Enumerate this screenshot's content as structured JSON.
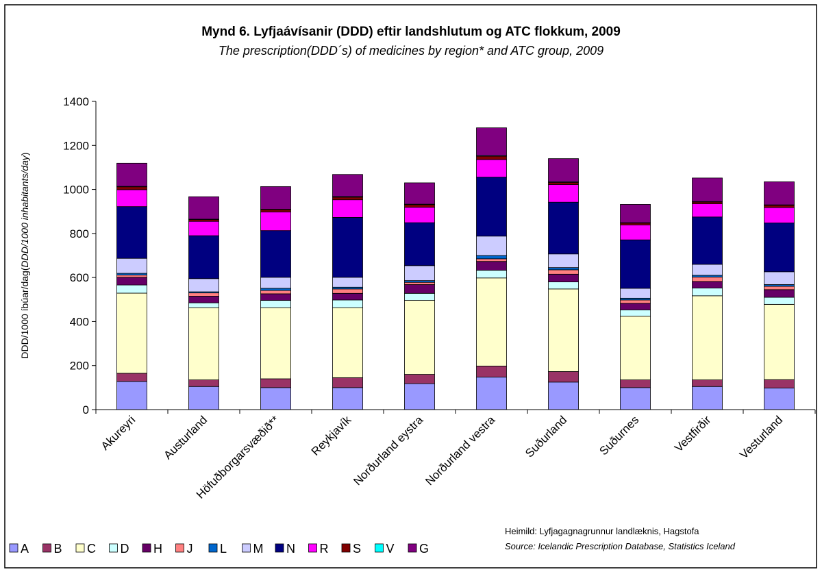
{
  "chart_data": {
    "type": "stacked_bar",
    "title": "Mynd 6.  Lyfjaávísanir (DDD) eftir landshlutum og ATC flokkum, 2009",
    "subtitle": "The prescription(DDD´s) of medicines by region* and ATC group, 2009",
    "y_label": [
      "DDD/1000 íbúar/dag(",
      "DDD/1000 inhabitants/day",
      ")"
    ],
    "source": [
      "Heimild: Lyfjagagnagrunnur landlæknis, Hagstofa",
      "Source: Icelandic Prescription Database, Statistics Iceland"
    ],
    "categories": [
      "Akureyri",
      "Austurland",
      "Höfuðborgarsvæðið**",
      "Reykjavík",
      "Norðurland eystra",
      "Norðurland vestra",
      "Suðurland",
      "Suðurnes",
      "Vestfirðir",
      "Vesturland"
    ],
    "ylim": [
      0,
      1400
    ],
    "yticks": [
      0,
      200,
      400,
      600,
      800,
      1000,
      1200,
      1400
    ],
    "grid": false,
    "legend": "bottom",
    "series": [
      {
        "name": "A",
        "color": "#9999ff",
        "values": [
          128,
          105,
          100,
          100,
          118,
          148,
          125,
          100,
          105,
          98
        ]
      },
      {
        "name": "B",
        "color": "#993366",
        "values": [
          37,
          30,
          40,
          45,
          42,
          50,
          48,
          35,
          30,
          38
        ]
      },
      {
        "name": "C",
        "color": "#ffffcc",
        "values": [
          364,
          328,
          323,
          318,
          336,
          400,
          375,
          290,
          382,
          342
        ]
      },
      {
        "name": "D",
        "color": "#ccffff",
        "values": [
          37,
          22,
          33,
          35,
          32,
          35,
          32,
          28,
          35,
          32
        ]
      },
      {
        "name": "H",
        "color": "#660066",
        "values": [
          35,
          30,
          30,
          30,
          40,
          40,
          35,
          30,
          30,
          35
        ]
      },
      {
        "name": "J",
        "color": "#ff8080",
        "values": [
          10,
          15,
          15,
          20,
          10,
          12,
          20,
          15,
          20,
          15
        ]
      },
      {
        "name": "L",
        "color": "#0066cc",
        "values": [
          8,
          5,
          10,
          8,
          8,
          15,
          10,
          8,
          8,
          8
        ]
      },
      {
        "name": "M",
        "color": "#ccccff",
        "values": [
          68,
          60,
          50,
          45,
          68,
          88,
          62,
          45,
          50,
          58
        ]
      },
      {
        "name": "N",
        "color": "#000080",
        "values": [
          235,
          195,
          212,
          272,
          195,
          268,
          235,
          220,
          215,
          222
        ]
      },
      {
        "name": "R",
        "color": "#ff00ff",
        "values": [
          77,
          65,
          85,
          80,
          70,
          80,
          80,
          68,
          60,
          70
        ]
      },
      {
        "name": "S",
        "color": "#800000",
        "values": [
          13,
          8,
          10,
          12,
          12,
          15,
          10,
          8,
          8,
          10
        ]
      },
      {
        "name": "V",
        "color": "#00ffff",
        "values": [
          2,
          2,
          2,
          3,
          2,
          3,
          3,
          2,
          2,
          2
        ]
      },
      {
        "name": "G",
        "color": "#800080",
        "values": [
          105,
          102,
          103,
          100,
          97,
          126,
          105,
          83,
          107,
          105
        ]
      }
    ]
  }
}
